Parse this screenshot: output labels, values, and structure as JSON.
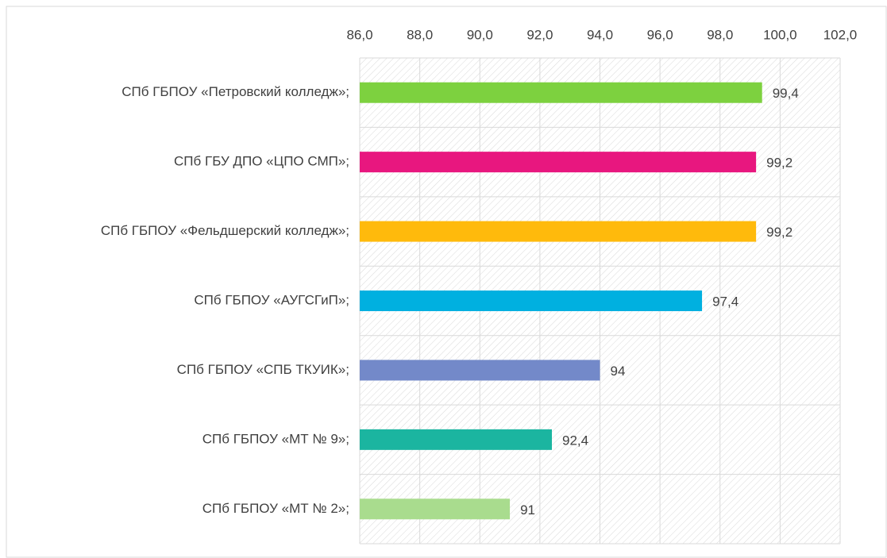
{
  "chart_data": {
    "type": "bar",
    "orientation": "horizontal",
    "categories": [
      "СПб ГБПОУ «Петровский колледж»;",
      "СПб ГБУ ДПО «ЦПО СМП»;",
      "СПб ГБПОУ «Фельдшерский колледж»;",
      "СПб ГБПОУ «АУГСГиП»;",
      "СПб ГБПОУ «СПБ ТКУИК»;",
      "СПб ГБПОУ «МТ № 9»;",
      "СПб ГБПОУ «МТ № 2»;"
    ],
    "values": [
      99.4,
      99.2,
      99.2,
      97.4,
      94,
      92.4,
      91
    ],
    "value_labels": [
      "99,4",
      "99,2",
      "99,2",
      "97,4",
      "94",
      "92,4",
      "91"
    ],
    "colors": [
      "#7dd13f",
      "#e8177f",
      "#ffba0c",
      "#00b0e0",
      "#7389c9",
      "#1bb5a0",
      "#a9dc8e"
    ],
    "xlim": [
      86,
      102
    ],
    "xticks": [
      {
        "value": 86,
        "label": "86,0"
      },
      {
        "value": 88,
        "label": "88,0"
      },
      {
        "value": 90,
        "label": "90,0"
      },
      {
        "value": 92,
        "label": "92,0"
      },
      {
        "value": 94,
        "label": "94,0"
      },
      {
        "value": 96,
        "label": "96,0"
      },
      {
        "value": 98,
        "label": "98,0"
      },
      {
        "value": 100,
        "label": "100,0"
      },
      {
        "value": 102,
        "label": "102,0"
      }
    ],
    "grid": true
  }
}
